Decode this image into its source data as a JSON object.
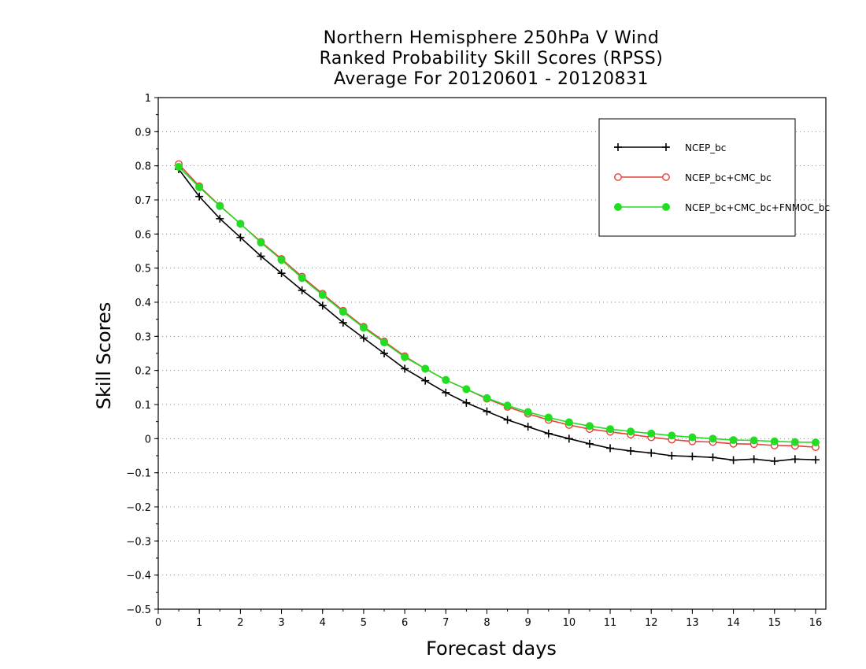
{
  "chart_data": {
    "type": "line",
    "title": [
      "Northern Hemisphere 250hPa V Wind",
      "Ranked Probability Skill Scores (RPSS)",
      "Average For 20120601 - 20120831"
    ],
    "xlabel": "Forecast days",
    "ylabel": "Skill Scores",
    "xlim": [
      0,
      16.25
    ],
    "ylim": [
      -0.5,
      1
    ],
    "xticks": [
      0,
      1,
      2,
      3,
      4,
      5,
      6,
      7,
      8,
      9,
      10,
      11,
      12,
      13,
      14,
      15,
      16
    ],
    "xtick_labels": [
      "0",
      "1",
      "2",
      "3",
      "4",
      "5",
      "6",
      "7",
      "8",
      "9",
      "10",
      "11",
      "12",
      "13",
      "14",
      "15",
      "16"
    ],
    "yticks": [
      -0.5,
      -0.4,
      -0.3,
      -0.2,
      -0.1,
      0,
      0.1,
      0.2,
      0.3,
      0.4,
      0.5,
      0.6,
      0.7,
      0.8,
      0.9,
      1
    ],
    "ytick_labels": [
      "−0.5",
      "−0.4",
      "−0.3",
      "−0.2",
      "−0.1",
      "0",
      "0.1",
      "0.2",
      "0.3",
      "0.4",
      "0.5",
      "0.6",
      "0.7",
      "0.8",
      "0.9",
      "1"
    ],
    "grid": "horizontal dotted",
    "legend_position": "top-right",
    "x": [
      0.5,
      1,
      1.5,
      2,
      2.5,
      3,
      3.5,
      4,
      4.5,
      5,
      5.5,
      6,
      6.5,
      7,
      7.5,
      8,
      8.5,
      9,
      9.5,
      10,
      10.5,
      11,
      11.5,
      12,
      12.5,
      13,
      13.5,
      14,
      14.5,
      15,
      15.5,
      16
    ],
    "series": [
      {
        "name": "NCEP_bc",
        "color": "#000000",
        "marker": "plus",
        "values": [
          0.79,
          0.71,
          0.645,
          0.59,
          0.535,
          0.485,
          0.435,
          0.39,
          0.34,
          0.295,
          0.25,
          0.205,
          0.17,
          0.135,
          0.105,
          0.08,
          0.055,
          0.035,
          0.015,
          0.0,
          -0.015,
          -0.028,
          -0.036,
          -0.042,
          -0.05,
          -0.052,
          -0.055,
          -0.063,
          -0.06,
          -0.066,
          -0.06,
          -0.062
        ]
      },
      {
        "name": "NCEP_bc+CMC_bc",
        "color": "#e8403a",
        "marker": "open-circle",
        "values": [
          0.805,
          0.74,
          0.683,
          0.63,
          0.577,
          0.527,
          0.475,
          0.425,
          0.375,
          0.328,
          0.285,
          0.242,
          0.205,
          0.172,
          0.145,
          0.117,
          0.093,
          0.073,
          0.055,
          0.04,
          0.028,
          0.02,
          0.012,
          0.004,
          -0.003,
          -0.008,
          -0.01,
          -0.015,
          -0.016,
          -0.02,
          -0.021,
          -0.025
        ]
      },
      {
        "name": "NCEP_bc+CMC_bc+FNMOC_bc",
        "color": "#22dd22",
        "marker": "filled-circle",
        "values": [
          0.797,
          0.737,
          0.682,
          0.63,
          0.575,
          0.524,
          0.471,
          0.421,
          0.372,
          0.325,
          0.282,
          0.239,
          0.205,
          0.172,
          0.145,
          0.119,
          0.097,
          0.078,
          0.062,
          0.048,
          0.037,
          0.028,
          0.021,
          0.015,
          0.009,
          0.004,
          0.0,
          -0.004,
          -0.005,
          -0.008,
          -0.01,
          -0.011
        ]
      }
    ]
  }
}
